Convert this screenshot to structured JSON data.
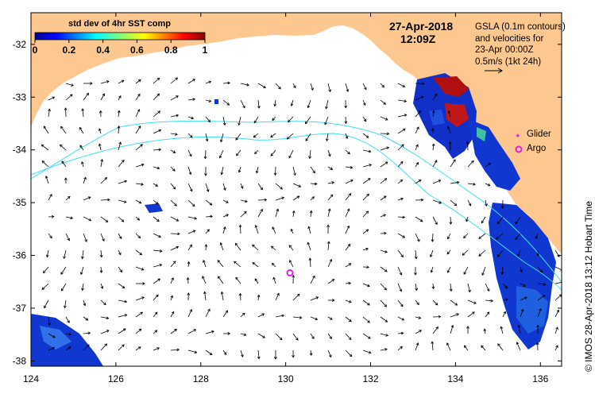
{
  "map": {
    "lon_range": [
      124,
      136.5
    ],
    "lat_range": [
      -38.1,
      -31.4
    ],
    "lon_ticks": [
      124,
      126,
      128,
      130,
      132,
      134,
      136
    ],
    "lat_ticks": [
      -32,
      -33,
      -34,
      -35,
      -36,
      -37,
      -38
    ],
    "lon_tick_labels": [
      "124",
      "126",
      "128",
      "130",
      "132",
      "134",
      "136"
    ],
    "lat_tick_labels": [
      "-32",
      "-33",
      "-34",
      "-35",
      "-36",
      "-37",
      "-38"
    ]
  },
  "colorbar": {
    "title": "std dev of 4hr SST comp",
    "min": 0,
    "max": 1,
    "tick_labels": [
      "0",
      "0.2",
      "0.4",
      "0.6",
      "0.8",
      "1"
    ],
    "tick_values": [
      0,
      0.2,
      0.4,
      0.6,
      0.8,
      1
    ]
  },
  "header": {
    "date": "27-Apr-2018",
    "time": "12:09Z"
  },
  "gsla_note": {
    "line1": "GSLA (0.1m contours)",
    "line2": "and velocities for",
    "line3": "23-Apr 00:00Z",
    "line4": "0.5m/s (1kt 24h)"
  },
  "legend": {
    "glider_label": "Glider",
    "argo_label": "Argo"
  },
  "argo_float": {
    "lon": 130.1,
    "lat": -36.33
  },
  "credit": "© IMOS 28-Apr-2018 13:12 Hobart Time",
  "colors": {
    "land": "#fdc890",
    "contour": "#3ee0f0",
    "argo": "#e020e0",
    "glider": "#e020e0"
  }
}
